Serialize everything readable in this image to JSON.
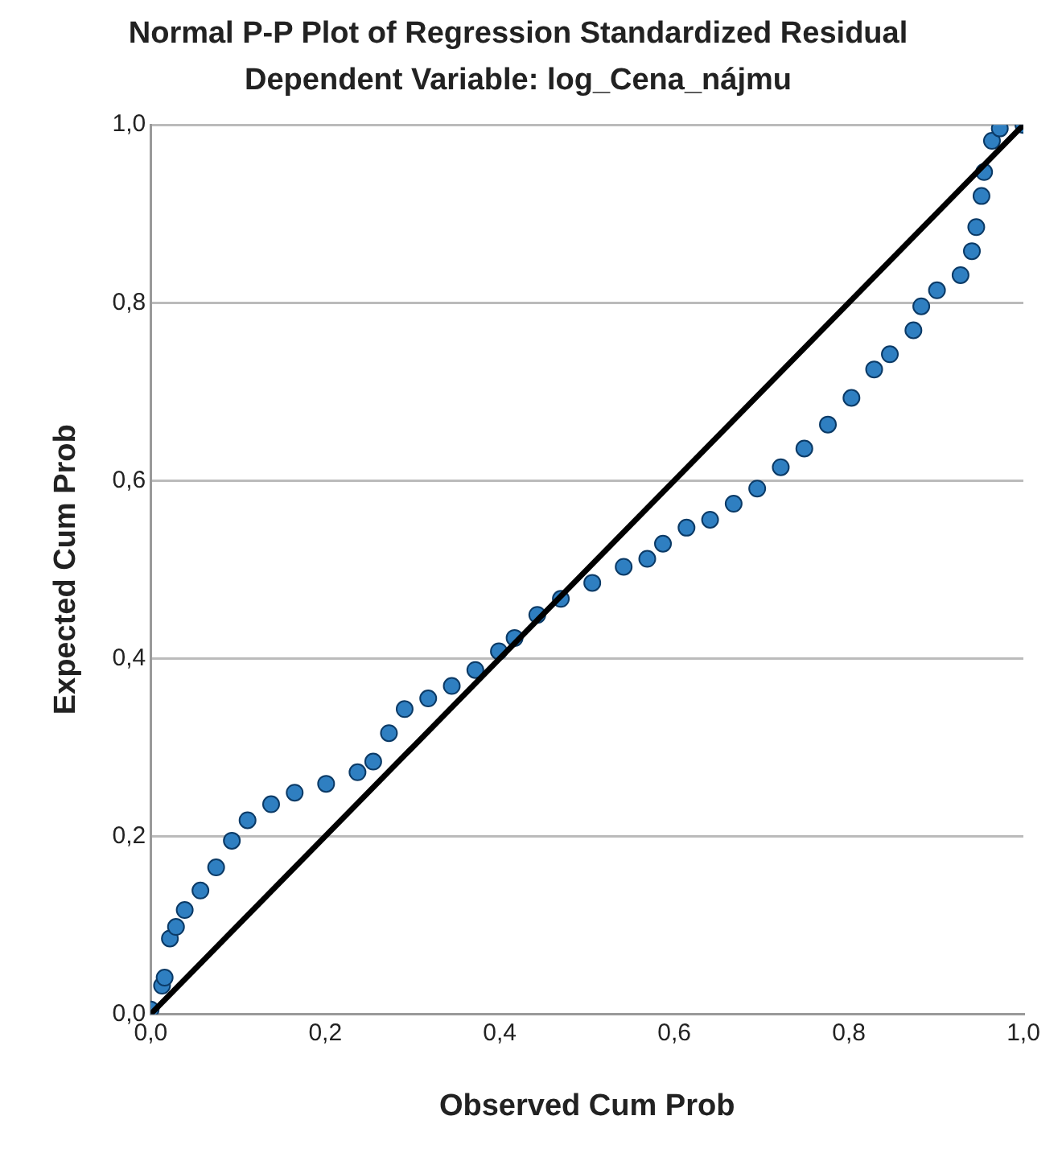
{
  "chart_data": {
    "type": "scatter",
    "title": "Normal P-P Plot of Regression Standardized Residual",
    "subtitle": "Dependent Variable: log_Cena_nájmu",
    "xlabel": "Observed Cum Prob",
    "ylabel": "Expected Cum Prob",
    "xlim": [
      0,
      1
    ],
    "ylim": [
      0,
      1
    ],
    "xticks": [
      {
        "value": 0,
        "label": "0,0"
      },
      {
        "value": 0.2,
        "label": "0,2"
      },
      {
        "value": 0.4,
        "label": "0,4"
      },
      {
        "value": 0.6,
        "label": "0,6"
      },
      {
        "value": 0.8,
        "label": "0,8"
      },
      {
        "value": 1,
        "label": "1,0"
      }
    ],
    "yticks": [
      {
        "value": 0,
        "label": "0,0"
      },
      {
        "value": 0.2,
        "label": "0,2"
      },
      {
        "value": 0.4,
        "label": "0,4"
      },
      {
        "value": 0.6,
        "label": "0,6"
      },
      {
        "value": 0.8,
        "label": "0,8"
      },
      {
        "value": 1,
        "label": "1,0"
      }
    ],
    "grid": "y",
    "legend": false,
    "series": [
      {
        "marker": "circle",
        "color": "#2f7fc1",
        "x": [
          0.0,
          0.013,
          0.016,
          0.022,
          0.029,
          0.039,
          0.057,
          0.075,
          0.093,
          0.111,
          0.138,
          0.165,
          0.201,
          0.237,
          0.255,
          0.273,
          0.291,
          0.318,
          0.345,
          0.372,
          0.399,
          0.417,
          0.443,
          0.47,
          0.506,
          0.542,
          0.569,
          0.587,
          0.614,
          0.641,
          0.668,
          0.695,
          0.722,
          0.749,
          0.776,
          0.803,
          0.829,
          0.847,
          0.874,
          0.883,
          0.901,
          0.928,
          0.941,
          0.946,
          0.952,
          0.955,
          0.964,
          0.973,
          1.0
        ],
        "values": [
          0.005,
          0.032,
          0.041,
          0.085,
          0.098,
          0.117,
          0.139,
          0.165,
          0.195,
          0.218,
          0.236,
          0.249,
          0.259,
          0.272,
          0.284,
          0.316,
          0.343,
          0.355,
          0.369,
          0.387,
          0.408,
          0.423,
          0.449,
          0.467,
          0.485,
          0.503,
          0.512,
          0.529,
          0.547,
          0.556,
          0.574,
          0.591,
          0.615,
          0.636,
          0.663,
          0.693,
          0.725,
          0.742,
          0.769,
          0.796,
          0.814,
          0.831,
          0.858,
          0.885,
          0.92,
          0.947,
          0.982,
          0.996,
          1.0
        ]
      },
      {
        "type": "line",
        "marker": "none",
        "color": "#000000",
        "x": [
          0,
          1
        ],
        "values": [
          0,
          1
        ]
      }
    ]
  }
}
